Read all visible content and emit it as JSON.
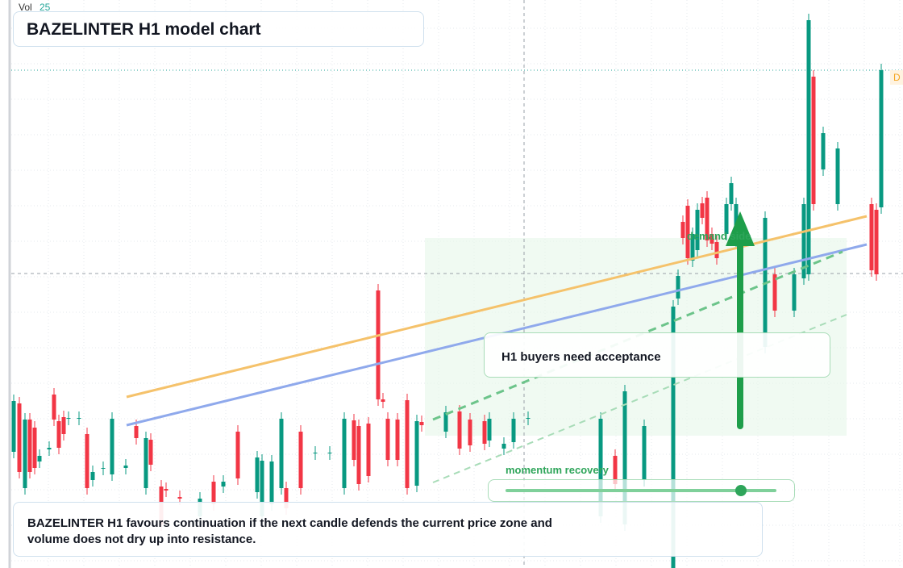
{
  "header": {
    "volume_label": "Vol",
    "volume_value": "25",
    "title": "BAZELINTER H1 model chart",
    "price_tag": "D"
  },
  "annotations": {
    "zone_label": "demand side",
    "callout": "H1 buyers need acceptance",
    "momentum_label": "momentum recovery"
  },
  "footnote": "BAZELINTER H1 favours continuation if the next candle defends the current price zone and volume does not dry up into resistance."
}
